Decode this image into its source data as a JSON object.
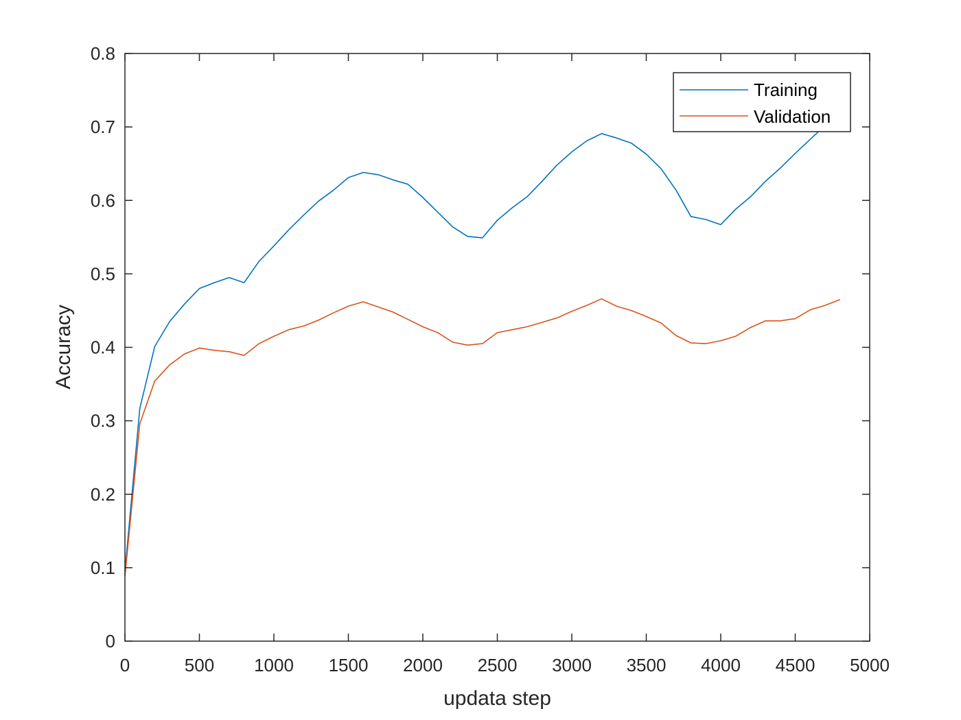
{
  "chart_data": {
    "type": "line",
    "title": "",
    "xlabel": "updata step",
    "ylabel": "Accuracy",
    "xlim": [
      0,
      5000
    ],
    "ylim": [
      0,
      0.8
    ],
    "xticks": [
      0,
      500,
      1000,
      1500,
      2000,
      2500,
      3000,
      3500,
      4000,
      4500,
      5000
    ],
    "yticks": [
      0,
      0.1,
      0.2,
      0.3,
      0.4,
      0.5,
      0.6,
      0.7,
      0.8
    ],
    "xtick_labels": [
      "0",
      "500",
      "1000",
      "1500",
      "2000",
      "2500",
      "3000",
      "3500",
      "4000",
      "4500",
      "5000"
    ],
    "ytick_labels": [
      "0",
      "0.1",
      "0.2",
      "0.3",
      "0.4",
      "0.5",
      "0.6",
      "0.7",
      "0.8"
    ],
    "grid": false,
    "legend_position": "top-right",
    "x": [
      0,
      100,
      200,
      300,
      400,
      500,
      600,
      700,
      800,
      900,
      1000,
      1100,
      1200,
      1300,
      1400,
      1500,
      1600,
      1700,
      1800,
      1900,
      2000,
      2100,
      2200,
      2300,
      2400,
      2500,
      2600,
      2700,
      2800,
      2900,
      3000,
      3100,
      3200,
      3300,
      3400,
      3500,
      3600,
      3700,
      3800,
      3900,
      4000,
      4100,
      4200,
      4300,
      4400,
      4500,
      4600,
      4700,
      4800
    ],
    "series": [
      {
        "name": "Training",
        "color": "#0072BD",
        "values": [
          0.095,
          0.317,
          0.401,
          0.435,
          0.459,
          0.48,
          0.488,
          0.495,
          0.488,
          0.517,
          0.538,
          0.56,
          0.58,
          0.599,
          0.614,
          0.631,
          0.638,
          0.635,
          0.628,
          0.622,
          0.604,
          0.584,
          0.564,
          0.551,
          0.549,
          0.573,
          0.59,
          0.605,
          0.626,
          0.648,
          0.666,
          0.681,
          0.691,
          0.685,
          0.678,
          0.663,
          0.643,
          0.614,
          0.578,
          0.574,
          0.567,
          0.588,
          0.605,
          0.626,
          0.644,
          0.664,
          0.683,
          0.702,
          0.703
        ]
      },
      {
        "name": "Validation",
        "color": "#D95319",
        "values": [
          0.088,
          0.296,
          0.354,
          0.376,
          0.391,
          0.399,
          0.396,
          0.394,
          0.389,
          0.405,
          0.415,
          0.424,
          0.429,
          0.437,
          0.447,
          0.456,
          0.462,
          0.455,
          0.448,
          0.438,
          0.428,
          0.42,
          0.407,
          0.403,
          0.405,
          0.42,
          0.424,
          0.428,
          0.434,
          0.44,
          0.449,
          0.457,
          0.466,
          0.456,
          0.45,
          0.442,
          0.433,
          0.416,
          0.406,
          0.405,
          0.409,
          0.415,
          0.427,
          0.436,
          0.436,
          0.439,
          0.451,
          0.457,
          0.465
        ]
      }
    ]
  }
}
